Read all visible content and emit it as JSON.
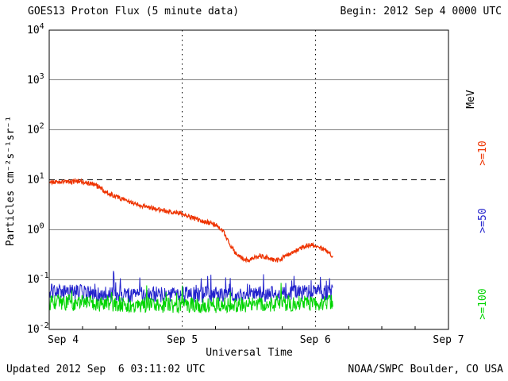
{
  "header": {
    "title": "GOES13 Proton Flux (5 minute data)",
    "begin": "Begin: 2012 Sep 4 0000 UTC"
  },
  "footer": {
    "updated": "Updated 2012 Sep  6 03:11:02 UTC",
    "credit": "NOAA/SWPC Boulder, CO USA"
  },
  "chart_data": {
    "type": "line",
    "title": "GOES13 Proton Flux (5 minute data)",
    "xlabel": "Universal Time",
    "ylabel": "Particles cm⁻²s⁻¹sr⁻¹",
    "x_unit": "hours since 2012 Sep 4 0000 UTC",
    "x_range_hours": [
      0,
      72
    ],
    "x_ticks": [
      {
        "hour": 0,
        "label": "Sep 4"
      },
      {
        "hour": 24,
        "label": "Sep 5"
      },
      {
        "hour": 48,
        "label": "Sep 6"
      },
      {
        "hour": 72,
        "label": "Sep 7"
      }
    ],
    "ylog_range": [
      -2,
      4
    ],
    "y_ticks": [
      {
        "exp": 4,
        "sup": "4",
        "label": "10⁴"
      },
      {
        "exp": 3,
        "sup": "3",
        "label": "10³"
      },
      {
        "exp": 2,
        "sup": "2",
        "label": "10²"
      },
      {
        "exp": 1,
        "sup": "1",
        "label": "10¹"
      },
      {
        "exp": 0,
        "sup": "0",
        "label": "10⁰"
      },
      {
        "exp": -1,
        "sup": "-1",
        "label": "10⁻¹"
      },
      {
        "exp": -2,
        "sup": "-2",
        "label": "10⁻²"
      }
    ],
    "grid": {
      "h_solid_exps": [
        3,
        2,
        0,
        -1
      ],
      "h_dashed_exps": [
        1
      ],
      "v_dotted_hours": [
        24,
        48
      ]
    },
    "threshold": {
      "value": 10,
      "style": "dashed"
    },
    "legend_position": "right",
    "legend_right": [
      {
        "label": "MeV",
        "color": "#000000"
      },
      {
        "label": ">=10",
        "color": "#ee3300"
      },
      {
        "label": ">=50",
        "color": "#2222cc"
      },
      {
        "label": ">=100",
        "color": "#00d400"
      }
    ],
    "series": [
      {
        "name": ">=10 MeV",
        "color": "#ee3300",
        "z_order": 3,
        "width": 1.3,
        "noise_log": 0.045,
        "end_hour": 51.2,
        "sample_hours": [
          0,
          1,
          2,
          3,
          4,
          5,
          6,
          7,
          8,
          9,
          10,
          11,
          12,
          13,
          14,
          15,
          16,
          17,
          18,
          19,
          20,
          21,
          22,
          23,
          24,
          25,
          26,
          27,
          28,
          29,
          30,
          31,
          32,
          33,
          34,
          35,
          36,
          37,
          38,
          39,
          40,
          41,
          42,
          43,
          44,
          45,
          46,
          47,
          48,
          49,
          50,
          51
        ],
        "values": [
          9.5,
          9.0,
          8.7,
          9.3,
          8.8,
          9.7,
          9.1,
          8.5,
          8.0,
          7.0,
          6.0,
          5.2,
          4.6,
          4.2,
          3.8,
          3.5,
          3.2,
          3.0,
          2.8,
          2.65,
          2.5,
          2.4,
          2.3,
          2.2,
          2.05,
          1.9,
          1.7,
          1.55,
          1.45,
          1.35,
          1.25,
          1.05,
          0.7,
          0.42,
          0.3,
          0.26,
          0.24,
          0.27,
          0.3,
          0.28,
          0.26,
          0.24,
          0.27,
          0.31,
          0.35,
          0.4,
          0.45,
          0.5,
          0.47,
          0.42,
          0.36,
          0.3
        ]
      },
      {
        "name": ">=50 MeV",
        "color": "#2222cc",
        "z_order": 1,
        "width": 1,
        "noise_log": 0.16,
        "spike_p": 0.05,
        "spike_amp": 0.4,
        "floor": 0.0115,
        "end_hour": 51.2,
        "sample_hours": [
          0,
          12,
          24,
          36,
          48,
          51.2
        ],
        "values": [
          0.06,
          0.05,
          0.05,
          0.05,
          0.055,
          0.055
        ]
      },
      {
        "name": ">=100 MeV",
        "color": "#00d400",
        "z_order": 2,
        "width": 1,
        "noise_log": 0.16,
        "spike_p": 0.03,
        "spike_amp": 0.3,
        "floor": 0.011,
        "end_hour": 51.2,
        "sample_hours": [
          0,
          12,
          24,
          36,
          48,
          51.2
        ],
        "values": [
          0.035,
          0.032,
          0.03,
          0.032,
          0.034,
          0.034
        ]
      }
    ]
  }
}
